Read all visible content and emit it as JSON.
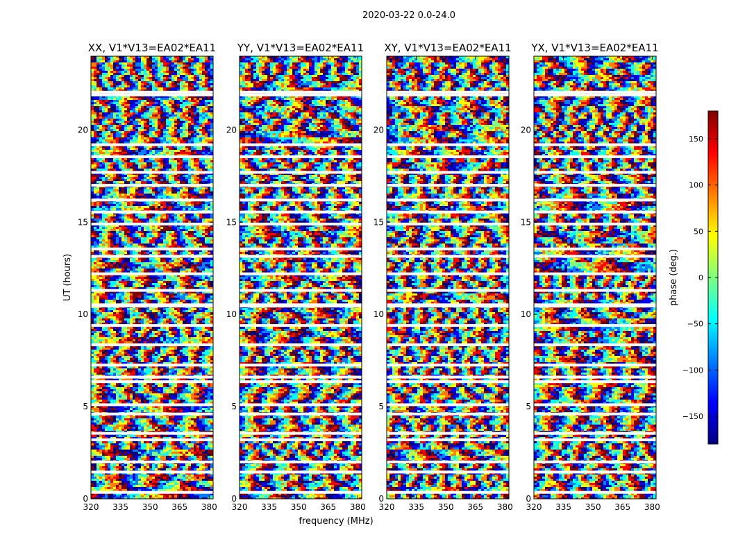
{
  "figure": {
    "title": "2020-03-22 0.0-24.0",
    "xlabel": "frequency (MHz)",
    "ylabel": "UT (hours)"
  },
  "chart_data": {
    "type": "heatmap",
    "description_units": {
      "x": "MHz",
      "y": "hours",
      "color": "degrees"
    },
    "xlim": [
      320,
      382
    ],
    "ylim": [
      0,
      24
    ],
    "xticks": [
      320,
      335,
      350,
      365,
      380
    ],
    "yticks": [
      0,
      5,
      10,
      15,
      20
    ],
    "panels": [
      {
        "title": "XX, V1*V13=EA02*EA11",
        "polarization": "XX"
      },
      {
        "title": "YY, V1*V13=EA02*EA11",
        "polarization": "YY"
      },
      {
        "title": "XY, V1*V13=EA02*EA11",
        "polarization": "XY"
      },
      {
        "title": "YX, V1*V13=EA02*EA11",
        "polarization": "YX"
      }
    ],
    "colorbar": {
      "label": "phase (deg.)",
      "range": [
        -180,
        180
      ],
      "ticks": [
        -150,
        -100,
        -50,
        0,
        50,
        100,
        150
      ],
      "colormap": "jet",
      "colors": [
        "#00007f",
        "#0000ff",
        "#007fff",
        "#00ffff",
        "#7fff7f",
        "#ffff00",
        "#ff7f00",
        "#ff0000",
        "#7f0000"
      ]
    },
    "flagged_gaps_hours": [
      0.35,
      1.45,
      2.0,
      3.2,
      3.55,
      4.6,
      5.1,
      6.35,
      6.6,
      7.25,
      8.35,
      9.4,
      10.45,
      10.52,
      11.3,
      12.2,
      13.15,
      13.55,
      14.9,
      15.55,
      16.2,
      17.0,
      17.7,
      18.55,
      19.2,
      21.9,
      22.05
    ]
  }
}
